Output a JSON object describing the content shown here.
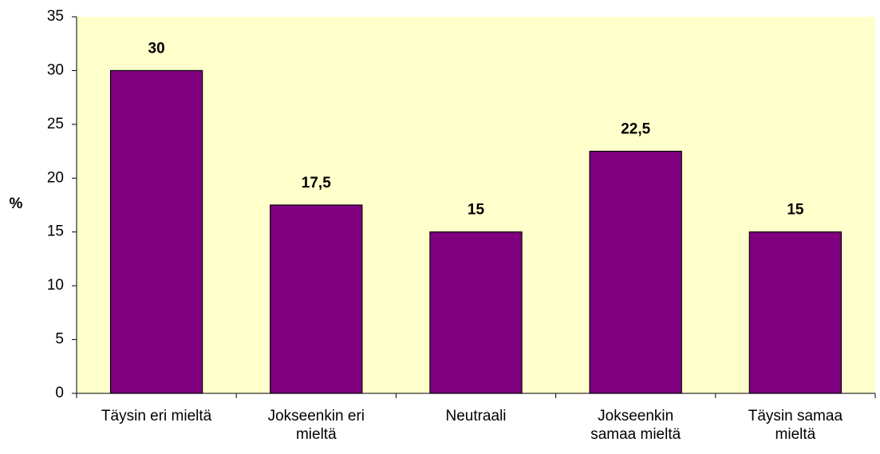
{
  "chart_data": {
    "type": "bar",
    "y_label": "%",
    "categories": [
      "Täysin eri mieltä",
      "Jokseenkin eri\nmieltä",
      "Neutraali",
      "Jokseenkin\nsamaa mieltä",
      "Täysin samaa\nmieltä"
    ],
    "values": [
      30,
      17.5,
      15,
      22.5,
      15
    ],
    "value_labels": [
      "30",
      "17,5",
      "15",
      "22,5",
      "15"
    ],
    "color": "#800080",
    "ylim": [
      0,
      35
    ],
    "yticks": [
      0,
      5,
      10,
      15,
      20,
      25,
      30,
      35
    ],
    "plot_background": "#ffffcc"
  }
}
